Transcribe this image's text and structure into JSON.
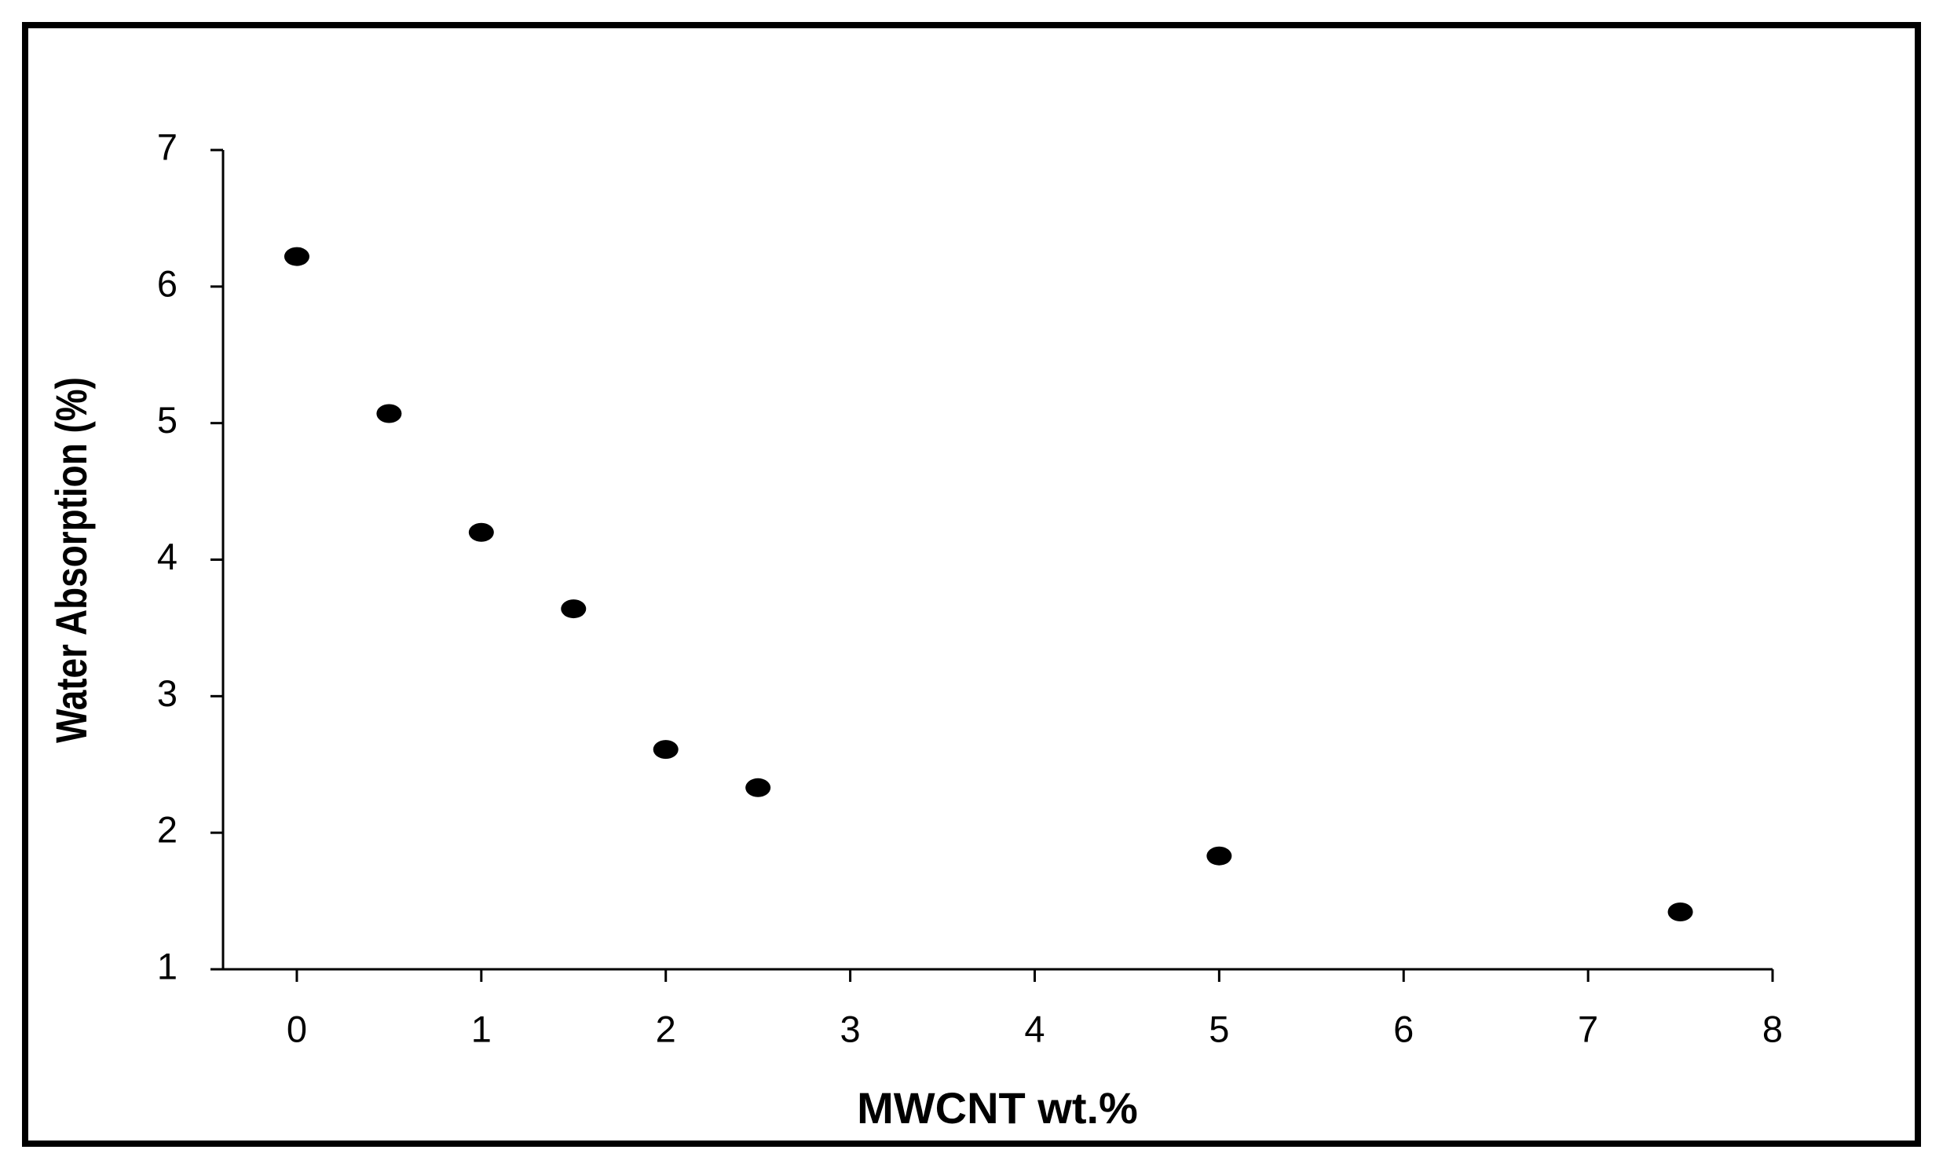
{
  "chart_data": {
    "type": "scatter",
    "xlabel": "MWCNT wt.%",
    "ylabel": "Water Absorption (%)",
    "x": [
      0,
      0.5,
      1,
      1.5,
      2,
      2.5,
      5,
      7.5
    ],
    "values": [
      6.22,
      5.07,
      4.2,
      3.64,
      2.61,
      2.33,
      1.83,
      1.42
    ],
    "color": "#000000",
    "xlim": [
      -0.4,
      8
    ],
    "xticks": [
      0,
      1,
      2,
      3,
      4,
      5,
      6,
      7,
      8
    ],
    "ylim": [
      1,
      7
    ],
    "yticks": [
      1,
      2,
      3,
      4,
      5,
      6,
      7
    ],
    "grid": false
  }
}
